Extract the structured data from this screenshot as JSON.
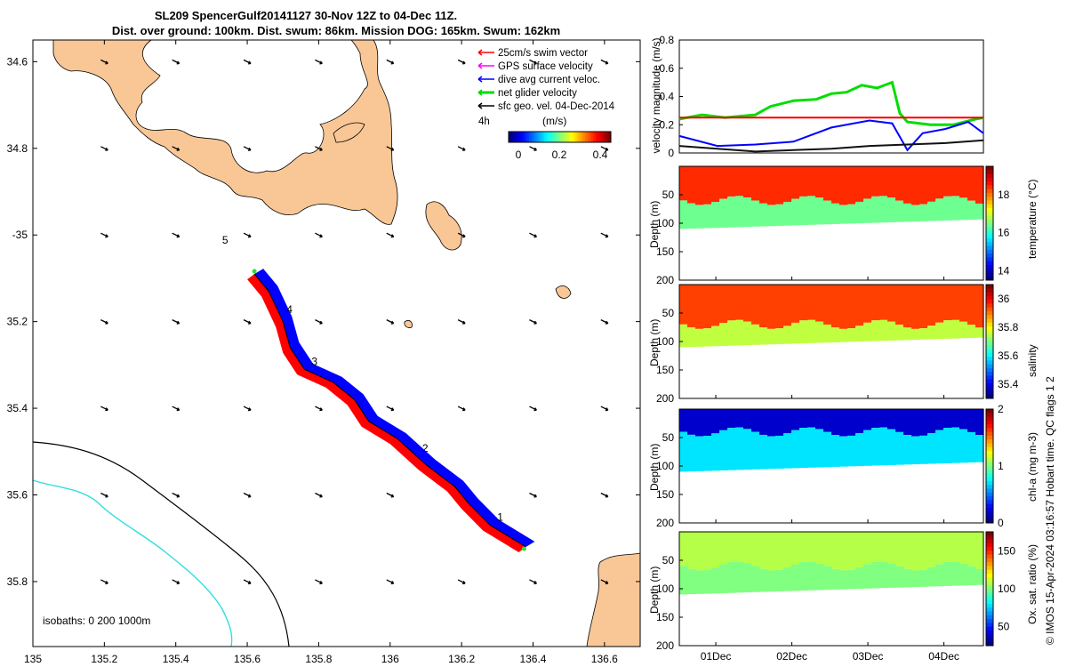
{
  "title": {
    "line1": "SL209 SpencerGulf20141127 30-Nov 12Z to 04-Dec 11Z.",
    "line2": "Dist. over ground: 100km. Dist. swum: 86km. Mission DOG: 165km. Swum: 162km"
  },
  "legend": {
    "items": [
      {
        "label": "25cm/s swim vector",
        "color": "#ff0000"
      },
      {
        "label": "GPS surface velocity",
        "color": "#ff00ff"
      },
      {
        "label": "dive avg current veloc.",
        "color": "#0000ff"
      },
      {
        "label": "net glider velocity",
        "color": "#00dd00"
      },
      {
        "label": "sfc geo. vel. 04-Dec-2014",
        "color": "#000000"
      }
    ],
    "interval": "4h",
    "colorbar_unit": "(m/s)",
    "colorbar_ticks": [
      "0",
      "0.2",
      "0.4"
    ]
  },
  "isobaths_label": "isobaths: 0   200  1000m",
  "footer": "© IMOS 15-Apr-2024 03:16:57 Hobart time. QC flags 1  2",
  "colors": {
    "land": "#f9c796",
    "glider_red": "#ff0000",
    "glider_blue": "#0000ff",
    "isobath_200": "#000000",
    "isobath_1000": "#33dde0"
  },
  "chart_data": [
    {
      "type": "scatter",
      "name": "map",
      "xlim": [
        135,
        136.7
      ],
      "ylim": [
        -35.95,
        -34.55
      ],
      "xticks": [
        135,
        135.2,
        135.4,
        135.6,
        135.8,
        136,
        136.2,
        136.4,
        136.6
      ],
      "xtick_labels": [
        "135",
        "135.2",
        "135.4",
        "135.6",
        "135.8",
        "136",
        "136.2",
        "136.4",
        "136.6"
      ],
      "yticks": [
        -34.6,
        -34.8,
        -35,
        -35.2,
        -35.4,
        -35.6,
        -35.8
      ],
      "ytick_labels": [
        "34.6",
        "34.8",
        "-35",
        "35.2",
        "35.4",
        "35.6",
        "35.8"
      ],
      "track": [
        [
          135.62,
          -35.09
        ],
        [
          135.66,
          -35.13
        ],
        [
          135.7,
          -35.2
        ],
        [
          135.72,
          -35.26
        ],
        [
          135.76,
          -35.31
        ],
        [
          135.84,
          -35.34
        ],
        [
          135.9,
          -35.38
        ],
        [
          135.94,
          -35.43
        ],
        [
          136.02,
          -35.47
        ],
        [
          136.1,
          -35.53
        ],
        [
          136.18,
          -35.58
        ],
        [
          136.22,
          -35.62
        ],
        [
          136.28,
          -35.67
        ],
        [
          136.34,
          -35.7
        ],
        [
          136.38,
          -35.72
        ]
      ],
      "waypoints": [
        {
          "label": "1",
          "lon": 136.3,
          "lat": -35.66
        },
        {
          "label": "2",
          "lon": 136.09,
          "lat": -35.5
        },
        {
          "label": "3",
          "lon": 135.78,
          "lat": -35.3
        },
        {
          "label": "4",
          "lon": 135.71,
          "lat": -35.18
        },
        {
          "label": "5",
          "lon": 135.53,
          "lat": -35.02
        }
      ]
    },
    {
      "type": "line",
      "name": "velocity",
      "ylabel": "velocity magnitude (m/s)",
      "ylim": [
        0,
        0.8
      ],
      "yticks": [
        "0",
        "0.2",
        "0.4",
        "0.6",
        "0.8"
      ],
      "xlim": [
        0,
        4
      ],
      "series": [
        {
          "color": "#00dd00",
          "x": [
            0,
            0.3,
            0.6,
            1.0,
            1.2,
            1.5,
            1.8,
            2.0,
            2.2,
            2.4,
            2.6,
            2.8,
            2.9,
            3.0,
            3.3,
            3.6,
            3.9,
            4.0
          ],
          "y": [
            0.24,
            0.27,
            0.25,
            0.27,
            0.33,
            0.37,
            0.38,
            0.42,
            0.43,
            0.48,
            0.46,
            0.5,
            0.28,
            0.22,
            0.2,
            0.2,
            0.24,
            0.25
          ]
        },
        {
          "color": "#ff0000",
          "x": [
            0,
            4
          ],
          "y": [
            0.25,
            0.25
          ]
        },
        {
          "color": "#0000ff",
          "x": [
            0,
            0.5,
            1.0,
            1.5,
            2.0,
            2.5,
            2.8,
            3.0,
            3.2,
            3.5,
            3.8,
            4.0
          ],
          "y": [
            0.12,
            0.05,
            0.06,
            0.08,
            0.18,
            0.23,
            0.21,
            0.02,
            0.14,
            0.17,
            0.22,
            0.14
          ]
        },
        {
          "color": "#111111",
          "x": [
            0,
            0.5,
            1.0,
            1.5,
            2.0,
            2.5,
            3.0,
            3.5,
            4.0
          ],
          "y": [
            0.05,
            0.03,
            0.01,
            0.02,
            0.03,
            0.05,
            0.06,
            0.07,
            0.09
          ]
        }
      ]
    },
    {
      "type": "heatmap",
      "name": "temperature",
      "ylabel": "Depth (m)",
      "cbar_label": "temperature (°C)",
      "ylim": [
        0,
        200
      ],
      "yticks": [
        "50",
        "100",
        "150",
        "200"
      ],
      "clim": [
        13.5,
        19.5
      ],
      "cbar_ticks": [
        "14",
        "16",
        "18"
      ],
      "surface_layer_value": 18.5,
      "deep_value": 16.4,
      "mixed_depth": 60,
      "bottom_depth": 110
    },
    {
      "type": "heatmap",
      "name": "salinity",
      "ylabel": "Depth (m)",
      "cbar_label": "salinity",
      "ylim": [
        0,
        200
      ],
      "yticks": [
        "50",
        "100",
        "150",
        "200"
      ],
      "clim": [
        35.3,
        36.1
      ],
      "cbar_ticks": [
        "35.4",
        "35.6",
        "35.8",
        "36"
      ],
      "surface_layer_value": 35.95,
      "deep_value": 35.75,
      "mixed_depth": 70,
      "bottom_depth": 110
    },
    {
      "type": "heatmap",
      "name": "chl-a",
      "ylabel": "Depth (m)",
      "cbar_label": "chl-a (mg m-3)",
      "ylim": [
        0,
        200
      ],
      "yticks": [
        "50",
        "100",
        "150",
        "200"
      ],
      "clim": [
        0,
        2
      ],
      "cbar_ticks": [
        "0",
        "1",
        "2"
      ],
      "surface_layer_value": 0.15,
      "deep_value": 0.7,
      "mixed_depth": 40,
      "bottom_depth": 110
    },
    {
      "type": "heatmap",
      "name": "oxygen",
      "ylabel": "Depth (m)",
      "cbar_label": "Ox. sat. ratio (%)",
      "ylim": [
        0,
        200
      ],
      "yticks": [
        "50",
        "100",
        "150",
        "200"
      ],
      "clim": [
        25,
        175
      ],
      "cbar_ticks": [
        "50",
        "100",
        "150"
      ],
      "surface_layer_value": 108,
      "deep_value": 100,
      "mixed_depth": 60,
      "bottom_depth": 110
    }
  ],
  "time_axis": {
    "ticks": [
      "01Dec",
      "02Dec",
      "03Dec",
      "04Dec"
    ]
  }
}
